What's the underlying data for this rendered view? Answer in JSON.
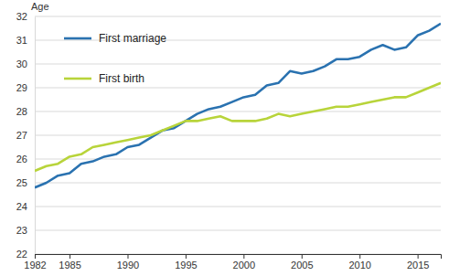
{
  "chart_data": {
    "type": "line",
    "y_label": "Age",
    "x": [
      1982,
      1983,
      1984,
      1985,
      1986,
      1987,
      1988,
      1989,
      1990,
      1991,
      1992,
      1993,
      1994,
      1995,
      1996,
      1997,
      1998,
      1999,
      2000,
      2001,
      2002,
      2003,
      2004,
      2005,
      2006,
      2007,
      2008,
      2009,
      2010,
      2011,
      2012,
      2013,
      2014,
      2015,
      2016,
      2017
    ],
    "series": [
      {
        "name": "First marriage",
        "color": "#2a72b0",
        "values": [
          24.8,
          25.0,
          25.3,
          25.4,
          25.8,
          25.9,
          26.1,
          26.2,
          26.5,
          26.6,
          26.9,
          27.2,
          27.3,
          27.6,
          27.9,
          28.1,
          28.2,
          28.4,
          28.6,
          28.7,
          29.1,
          29.2,
          29.7,
          29.6,
          29.7,
          29.9,
          30.2,
          30.2,
          30.3,
          30.6,
          30.8,
          30.6,
          30.7,
          31.2,
          31.4,
          31.7
        ]
      },
      {
        "name": "First birth",
        "color": "#b8d43a",
        "values": [
          25.5,
          25.7,
          25.8,
          26.1,
          26.2,
          26.5,
          26.6,
          26.7,
          26.8,
          26.9,
          27.0,
          27.2,
          27.4,
          27.6,
          27.6,
          27.7,
          27.8,
          27.6,
          27.6,
          27.6,
          27.7,
          27.9,
          27.8,
          27.9,
          28.0,
          28.1,
          28.2,
          28.2,
          28.3,
          28.4,
          28.5,
          28.6,
          28.6,
          28.8,
          29.0,
          29.2
        ]
      }
    ],
    "xlim": [
      1982,
      2017
    ],
    "xticks": [
      1982,
      1985,
      1990,
      1995,
      2000,
      2005,
      2010,
      2015
    ],
    "ylim": [
      22,
      32
    ],
    "yticks": [
      22,
      23,
      24,
      25,
      26,
      27,
      28,
      29,
      30,
      31,
      32
    ],
    "grid": true,
    "legend": "upper left"
  }
}
